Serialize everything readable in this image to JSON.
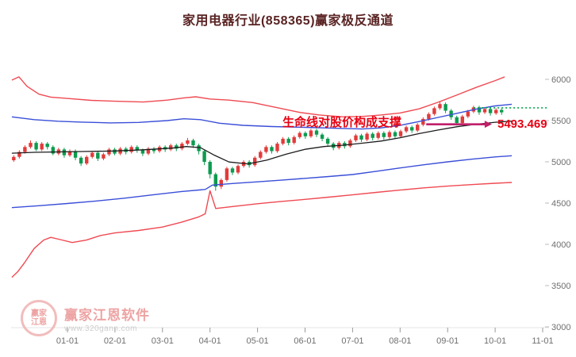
{
  "title": "家用电器行业(858365)赢家极反通道",
  "annotations": {
    "support_text": "生命线对股价构成支撑",
    "price_label": "5493.469"
  },
  "watermark": {
    "brand": "赢家江恩软件",
    "logo_line1": "赢家",
    "logo_line2": "江恩",
    "url": "www.320gann.com"
  },
  "colors": {
    "title": "#5a2323",
    "candle_up": "#e23b3b",
    "candle_down": "#0c9b4f",
    "channel_red": "#ef4a52",
    "channel_blue": "#3a4fd8",
    "life_line": "#1c1c1c",
    "green_dotted": "#00a84b",
    "arrow": "#c01f6a",
    "annotation_red": "#e60012",
    "axis_text": "#6f6f6f",
    "watermark_pink": "#eb9393",
    "watermark_gray": "#c6c6c6",
    "logo_ring": "#f0b2b2"
  },
  "chart_data": {
    "type": "candlestick",
    "title": "家用电器行业(858365)赢家极反通道",
    "x_ticks": [
      "01-01",
      "02-01",
      "03-01",
      "04-01",
      "05-01",
      "06-01",
      "07-01",
      "08-01",
      "09-01",
      "10-01",
      "11-01"
    ],
    "y_ticks": [
      3000,
      3500,
      4000,
      4500,
      5000,
      5500,
      6000
    ],
    "y_range": [
      3000,
      6530
    ],
    "legend_position": "none",
    "grid": false,
    "candle_start_month": -1.13,
    "candle_step_month": 0.118,
    "candles": [
      [
        5020,
        5060,
        5000,
        5080
      ],
      [
        5060,
        5120,
        5040,
        5140
      ],
      [
        5120,
        5180,
        5100,
        5200
      ],
      [
        5180,
        5230,
        5160,
        5260
      ],
      [
        5230,
        5150,
        5130,
        5250
      ],
      [
        5150,
        5220,
        5130,
        5240
      ],
      [
        5220,
        5180,
        5150,
        5240
      ],
      [
        5180,
        5100,
        5080,
        5200
      ],
      [
        5100,
        5150,
        5080,
        5170
      ],
      [
        5150,
        5080,
        5050,
        5170
      ],
      [
        5080,
        5130,
        5060,
        5150
      ],
      [
        5130,
        5050,
        5020,
        5150
      ],
      [
        5050,
        4980,
        4950,
        5070
      ],
      [
        4980,
        5060,
        4960,
        5080
      ],
      [
        5060,
        5110,
        5040,
        5130
      ],
      [
        5110,
        5040,
        5010,
        5130
      ],
      [
        5040,
        5090,
        5020,
        5110
      ],
      [
        5090,
        5150,
        5070,
        5170
      ],
      [
        5150,
        5100,
        5080,
        5170
      ],
      [
        5100,
        5160,
        5080,
        5180
      ],
      [
        5160,
        5120,
        5090,
        5180
      ],
      [
        5120,
        5180,
        5100,
        5200
      ],
      [
        5180,
        5140,
        5110,
        5200
      ],
      [
        5140,
        5100,
        5070,
        5160
      ],
      [
        5100,
        5160,
        5080,
        5180
      ],
      [
        5160,
        5130,
        5100,
        5180
      ],
      [
        5130,
        5180,
        5110,
        5200
      ],
      [
        5180,
        5150,
        5120,
        5200
      ],
      [
        5150,
        5200,
        5130,
        5220
      ],
      [
        5200,
        5160,
        5130,
        5220
      ],
      [
        5160,
        5220,
        5140,
        5240
      ],
      [
        5220,
        5260,
        5200,
        5290
      ],
      [
        5260,
        5200,
        5170,
        5280
      ],
      [
        5200,
        5130,
        5090,
        5220
      ],
      [
        5130,
        5000,
        4960,
        5150
      ],
      [
        5000,
        4850,
        4800,
        5020
      ],
      [
        4850,
        4700,
        4650,
        4870
      ],
      [
        4700,
        4780,
        4670,
        4800
      ],
      [
        4780,
        4920,
        4760,
        4940
      ],
      [
        4920,
        4870,
        4840,
        4940
      ],
      [
        4870,
        4950,
        4850,
        4970
      ],
      [
        4950,
        5000,
        4930,
        5020
      ],
      [
        5000,
        4960,
        4930,
        5020
      ],
      [
        4960,
        5050,
        4940,
        5070
      ],
      [
        5050,
        5120,
        5030,
        5140
      ],
      [
        5120,
        5180,
        5100,
        5200
      ],
      [
        5180,
        5130,
        5100,
        5200
      ],
      [
        5130,
        5220,
        5110,
        5240
      ],
      [
        5220,
        5280,
        5200,
        5300
      ],
      [
        5280,
        5230,
        5200,
        5300
      ],
      [
        5230,
        5300,
        5210,
        5320
      ],
      [
        5300,
        5350,
        5280,
        5370
      ],
      [
        5350,
        5310,
        5280,
        5370
      ],
      [
        5310,
        5380,
        5290,
        5400
      ],
      [
        5380,
        5330,
        5300,
        5400
      ],
      [
        5330,
        5280,
        5250,
        5350
      ],
      [
        5280,
        5220,
        5190,
        5300
      ],
      [
        5220,
        5170,
        5140,
        5240
      ],
      [
        5170,
        5230,
        5150,
        5250
      ],
      [
        5230,
        5190,
        5160,
        5250
      ],
      [
        5190,
        5260,
        5170,
        5280
      ],
      [
        5260,
        5320,
        5240,
        5340
      ],
      [
        5320,
        5270,
        5240,
        5340
      ],
      [
        5270,
        5340,
        5250,
        5360
      ],
      [
        5340,
        5290,
        5260,
        5360
      ],
      [
        5290,
        5350,
        5270,
        5370
      ],
      [
        5350,
        5300,
        5270,
        5370
      ],
      [
        5300,
        5360,
        5280,
        5380
      ],
      [
        5360,
        5310,
        5280,
        5380
      ],
      [
        5310,
        5370,
        5290,
        5390
      ],
      [
        5370,
        5420,
        5350,
        5440
      ],
      [
        5420,
        5380,
        5350,
        5440
      ],
      [
        5380,
        5450,
        5360,
        5470
      ],
      [
        5450,
        5520,
        5430,
        5540
      ],
      [
        5520,
        5580,
        5500,
        5600
      ],
      [
        5580,
        5650,
        5560,
        5670
      ],
      [
        5650,
        5700,
        5630,
        5730
      ],
      [
        5700,
        5620,
        5590,
        5720
      ],
      [
        5620,
        5540,
        5510,
        5640
      ],
      [
        5540,
        5470,
        5440,
        5560
      ],
      [
        5470,
        5550,
        5450,
        5570
      ],
      [
        5550,
        5610,
        5530,
        5630
      ],
      [
        5610,
        5660,
        5590,
        5680
      ],
      [
        5660,
        5600,
        5570,
        5680
      ],
      [
        5600,
        5640,
        5580,
        5660
      ],
      [
        5640,
        5590,
        5560,
        5660
      ],
      [
        5590,
        5630,
        5570,
        5650
      ],
      [
        5630,
        5600,
        5570,
        5650
      ]
    ],
    "lines": {
      "upper_red": [
        [
          -1.17,
          5990
        ],
        [
          -1.02,
          6030
        ],
        [
          -0.85,
          5915
        ],
        [
          -0.6,
          5820
        ],
        [
          -0.35,
          5785
        ],
        [
          0,
          5768
        ],
        [
          0.5,
          5745
        ],
        [
          1.0,
          5735
        ],
        [
          1.6,
          5725
        ],
        [
          2.1,
          5748
        ],
        [
          2.45,
          5775
        ],
        [
          2.7,
          5788
        ],
        [
          3.0,
          5762
        ],
        [
          3.4,
          5748
        ],
        [
          3.9,
          5718
        ],
        [
          4.4,
          5658
        ],
        [
          4.9,
          5598
        ],
        [
          5.3,
          5568
        ],
        [
          5.8,
          5545
        ],
        [
          6.2,
          5550
        ],
        [
          6.6,
          5568
        ],
        [
          7.0,
          5592
        ],
        [
          7.4,
          5642
        ],
        [
          7.8,
          5722
        ],
        [
          8.2,
          5812
        ],
        [
          8.6,
          5902
        ],
        [
          9.0,
          5985
        ],
        [
          9.2,
          6030
        ]
      ],
      "upper_blue": [
        [
          -1.17,
          5545
        ],
        [
          -0.7,
          5512
        ],
        [
          -0.2,
          5492
        ],
        [
          0.3,
          5482
        ],
        [
          0.9,
          5472
        ],
        [
          1.5,
          5478
        ],
        [
          2.1,
          5500
        ],
        [
          2.45,
          5522
        ],
        [
          2.8,
          5512
        ],
        [
          3.2,
          5468
        ],
        [
          3.7,
          5442
        ],
        [
          4.3,
          5428
        ],
        [
          5.0,
          5418
        ],
        [
          5.6,
          5408
        ],
        [
          6.2,
          5398
        ],
        [
          6.6,
          5412
        ],
        [
          7.0,
          5442
        ],
        [
          7.4,
          5488
        ],
        [
          7.8,
          5538
        ],
        [
          8.2,
          5588
        ],
        [
          8.6,
          5638
        ],
        [
          9.0,
          5678
        ],
        [
          9.35,
          5698
        ]
      ],
      "life_line": [
        [
          -1.17,
          5105
        ],
        [
          -0.7,
          5115
        ],
        [
          -0.2,
          5120
        ],
        [
          0.4,
          5126
        ],
        [
          1.0,
          5132
        ],
        [
          1.6,
          5146
        ],
        [
          2.2,
          5166
        ],
        [
          2.5,
          5186
        ],
        [
          2.8,
          5172
        ],
        [
          3.1,
          5078
        ],
        [
          3.4,
          4998
        ],
        [
          3.8,
          4975
        ],
        [
          4.2,
          5022
        ],
        [
          4.6,
          5092
        ],
        [
          5.0,
          5152
        ],
        [
          5.4,
          5186
        ],
        [
          5.8,
          5202
        ],
        [
          6.2,
          5226
        ],
        [
          6.6,
          5252
        ],
        [
          7.0,
          5292
        ],
        [
          7.4,
          5342
        ],
        [
          7.8,
          5386
        ],
        [
          8.2,
          5426
        ],
        [
          8.6,
          5456
        ],
        [
          9.0,
          5480
        ],
        [
          9.35,
          5493
        ]
      ],
      "lower_blue": [
        [
          -1.17,
          4445
        ],
        [
          -0.6,
          4468
        ],
        [
          0,
          4495
        ],
        [
          0.6,
          4525
        ],
        [
          1.2,
          4560
        ],
        [
          1.8,
          4600
        ],
        [
          2.4,
          4640
        ],
        [
          2.9,
          4665
        ],
        [
          3.05,
          4718
        ],
        [
          3.5,
          4738
        ],
        [
          4.0,
          4758
        ],
        [
          4.5,
          4778
        ],
        [
          5.0,
          4800
        ],
        [
          5.5,
          4822
        ],
        [
          6.0,
          4846
        ],
        [
          6.5,
          4886
        ],
        [
          7.0,
          4926
        ],
        [
          7.5,
          4964
        ],
        [
          8.0,
          5000
        ],
        [
          8.5,
          5032
        ],
        [
          9.0,
          5060
        ],
        [
          9.35,
          5074
        ]
      ],
      "lower_red": [
        [
          -1.17,
          3600
        ],
        [
          -1.05,
          3665
        ],
        [
          -0.9,
          3780
        ],
        [
          -0.7,
          3950
        ],
        [
          -0.5,
          4052
        ],
        [
          -0.35,
          4085
        ],
        [
          -0.15,
          4058
        ],
        [
          0.1,
          4022
        ],
        [
          0.4,
          4052
        ],
        [
          0.7,
          4108
        ],
        [
          1.0,
          4138
        ],
        [
          1.5,
          4168
        ],
        [
          2.0,
          4210
        ],
        [
          2.4,
          4268
        ],
        [
          2.75,
          4330
        ],
        [
          2.9,
          4370
        ],
        [
          3.0,
          4650
        ],
        [
          3.12,
          4435
        ],
        [
          3.5,
          4460
        ],
        [
          4.0,
          4492
        ],
        [
          4.5,
          4520
        ],
        [
          5.0,
          4545
        ],
        [
          5.5,
          4572
        ],
        [
          6.0,
          4600
        ],
        [
          6.5,
          4630
        ],
        [
          7.0,
          4658
        ],
        [
          7.5,
          4685
        ],
        [
          8.0,
          4706
        ],
        [
          8.5,
          4724
        ],
        [
          9.0,
          4740
        ],
        [
          9.35,
          4750
        ]
      ]
    },
    "green_dotted": {
      "value": 5655,
      "from_month": 8.55,
      "to_month": 10.12
    },
    "support_arrow": {
      "value": 5455,
      "from_month": 7.55,
      "to_month": 8.93
    }
  }
}
